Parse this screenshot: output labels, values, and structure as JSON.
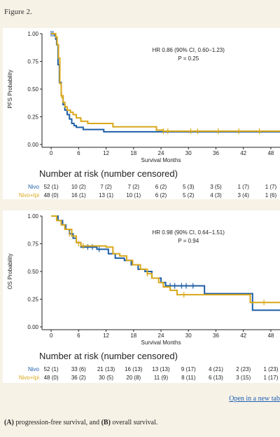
{
  "figure_label": "Figure 2.",
  "open_link_label": "Open in a new tab",
  "caption": {
    "a_marker": "(A)",
    "a_text": " progression-free survival, and ",
    "b_marker": "(B)",
    "b_text": " overall survival."
  },
  "colors": {
    "nivo": "#1f5fa6",
    "nivo_ipi": "#d9a81a",
    "axis": "#222222",
    "panel_bg": "#ffffff",
    "page_bg": "#f7f2e6"
  },
  "chart_data": [
    {
      "id": "pfs",
      "type": "line",
      "subtype": "kaplan-meier",
      "ylabel": "PFS Probability",
      "xlabel": "Survival Months",
      "xlim": [
        -2,
        50
      ],
      "ylim": [
        0,
        1
      ],
      "xticks": [
        0,
        6,
        12,
        18,
        24,
        30,
        36,
        42,
        48
      ],
      "yticks": [
        "0.00",
        "0.25",
        "0.50",
        "0.75",
        "1.00"
      ],
      "annotation": [
        "HR 0.86 (90% CI, 0.60−1.23)",
        "P = 0.25"
      ],
      "series": [
        {
          "name": "Nivo",
          "color": "#1f5fa6",
          "steps": [
            [
              0,
              1.0
            ],
            [
              0.8,
              0.98
            ],
            [
              1.0,
              0.95
            ],
            [
              1.2,
              0.9
            ],
            [
              1.5,
              0.72
            ],
            [
              1.8,
              0.56
            ],
            [
              2.2,
              0.44
            ],
            [
              2.6,
              0.36
            ],
            [
              3.0,
              0.31
            ],
            [
              3.5,
              0.27
            ],
            [
              4.0,
              0.23
            ],
            [
              4.5,
              0.19
            ],
            [
              5.0,
              0.17
            ],
            [
              5.5,
              0.155
            ],
            [
              7.0,
              0.135
            ],
            [
              11.0,
              0.135
            ],
            [
              11.5,
              0.115
            ],
            [
              23.0,
              0.115
            ],
            [
              50.0,
              0.115
            ]
          ],
          "censored": [
            [
              0,
              1.0
            ],
            [
              0.4,
              1.0
            ]
          ]
        },
        {
          "name": "Nivo+Ipi",
          "color": "#d9a81a",
          "steps": [
            [
              0,
              1.0
            ],
            [
              1.0,
              0.97
            ],
            [
              1.3,
              0.9
            ],
            [
              1.6,
              0.78
            ],
            [
              1.9,
              0.55
            ],
            [
              2.2,
              0.44
            ],
            [
              2.6,
              0.38
            ],
            [
              3.0,
              0.34
            ],
            [
              3.5,
              0.31
            ],
            [
              4.2,
              0.29
            ],
            [
              4.8,
              0.27
            ],
            [
              5.5,
              0.24
            ],
            [
              6.5,
              0.21
            ],
            [
              8.0,
              0.19
            ],
            [
              13.0,
              0.19
            ],
            [
              13.5,
              0.16
            ],
            [
              22.5,
              0.16
            ],
            [
              23.0,
              0.13
            ],
            [
              24.5,
              0.12
            ],
            [
              50.0,
              0.12
            ]
          ],
          "censored": [
            [
              2.3,
              0.44
            ],
            [
              24.5,
              0.12
            ],
            [
              25.5,
              0.12
            ],
            [
              30.5,
              0.12
            ],
            [
              32.0,
              0.12
            ],
            [
              36.5,
              0.12
            ],
            [
              41.0,
              0.12
            ],
            [
              45.5,
              0.12
            ]
          ]
        }
      ],
      "risk_table": {
        "title": "Number at risk (number censored)",
        "rows": [
          {
            "label": "Nivo",
            "color": "#1f5fa6",
            "values": [
              "52 (1)",
              "10 (2)",
              "7 (2)",
              "7 (2)",
              "6 (2)",
              "5 (3)",
              "3 (5)",
              "1 (7)",
              "1 (7)"
            ]
          },
          {
            "label": "Nivo+Ipi",
            "color": "#d9a81a",
            "values": [
              "48 (0)",
              "16 (1)",
              "13 (1)",
              "10 (1)",
              "6 (2)",
              "5 (2)",
              "4 (3)",
              "3 (4)",
              "1 (6)"
            ]
          }
        ]
      }
    },
    {
      "id": "os",
      "type": "line",
      "subtype": "kaplan-meier",
      "ylabel": "OS Probability",
      "xlabel": "Survival Months",
      "xlim": [
        -2,
        50
      ],
      "ylim": [
        0,
        1
      ],
      "xticks": [
        0,
        6,
        12,
        18,
        24,
        30,
        36,
        42,
        48
      ],
      "yticks": [
        "0.00",
        "0.25",
        "0.50",
        "0.75",
        "1.00"
      ],
      "annotation": [
        "HR 0.98 (90% CI, 0.64−1.51)",
        "P = 0.94"
      ],
      "series": [
        {
          "name": "Nivo",
          "color": "#1f5fa6",
          "steps": [
            [
              0,
              1.0
            ],
            [
              1.5,
              0.96
            ],
            [
              2.5,
              0.92
            ],
            [
              3.2,
              0.88
            ],
            [
              4.0,
              0.84
            ],
            [
              4.8,
              0.8
            ],
            [
              5.5,
              0.76
            ],
            [
              6.5,
              0.72
            ],
            [
              10.0,
              0.7
            ],
            [
              12.5,
              0.66
            ],
            [
              14.0,
              0.62
            ],
            [
              16.0,
              0.6
            ],
            [
              17.5,
              0.56
            ],
            [
              19.0,
              0.52
            ],
            [
              20.5,
              0.5
            ],
            [
              22.0,
              0.44
            ],
            [
              24.0,
              0.4
            ],
            [
              25.0,
              0.37
            ],
            [
              33.0,
              0.37
            ],
            [
              33.5,
              0.3
            ],
            [
              43.5,
              0.3
            ],
            [
              44.0,
              0.15
            ],
            [
              50.0,
              0.15
            ]
          ],
          "censored": [
            [
              8.0,
              0.72
            ],
            [
              9.0,
              0.72
            ],
            [
              10.5,
              0.7
            ],
            [
              26.0,
              0.37
            ],
            [
              27.0,
              0.37
            ],
            [
              28.5,
              0.37
            ],
            [
              29.5,
              0.37
            ],
            [
              31.0,
              0.37
            ]
          ]
        },
        {
          "name": "Nivo+Ipi",
          "color": "#d9a81a",
          "steps": [
            [
              0,
              1.0
            ],
            [
              1.2,
              0.96
            ],
            [
              2.2,
              0.92
            ],
            [
              3.0,
              0.88
            ],
            [
              4.5,
              0.82
            ],
            [
              5.5,
              0.76
            ],
            [
              6.5,
              0.73
            ],
            [
              12.0,
              0.72
            ],
            [
              13.5,
              0.66
            ],
            [
              15.0,
              0.64
            ],
            [
              16.5,
              0.6
            ],
            [
              17.8,
              0.56
            ],
            [
              19.5,
              0.52
            ],
            [
              21.0,
              0.48
            ],
            [
              22.0,
              0.44
            ],
            [
              23.5,
              0.4
            ],
            [
              24.5,
              0.36
            ],
            [
              26.0,
              0.33
            ],
            [
              27.5,
              0.29
            ],
            [
              42.5,
              0.29
            ],
            [
              43.5,
              0.22
            ],
            [
              50.0,
              0.22
            ]
          ],
          "censored": [
            [
              4.0,
              0.84
            ],
            [
              6.0,
              0.75
            ],
            [
              7.0,
              0.73
            ],
            [
              21.0,
              0.48
            ],
            [
              29.0,
              0.29
            ],
            [
              46.5,
              0.22
            ]
          ]
        }
      ],
      "risk_table": {
        "title": "Number at risk (number censored)",
        "rows": [
          {
            "label": "Nivo",
            "color": "#1f5fa6",
            "values": [
              "52 (1)",
              "33 (6)",
              "21 (13)",
              "16 (13)",
              "13 (13)",
              "9 (17)",
              "4 (21)",
              "2 (23)",
              "1 (23)"
            ]
          },
          {
            "label": "Nivo+Ipi",
            "color": "#d9a81a",
            "values": [
              "48 (0)",
              "36 (2)",
              "30 (5)",
              "20 (8)",
              "11 (9)",
              "8 (11)",
              "6 (13)",
              "3 (15)",
              "1 (17)"
            ]
          }
        ]
      }
    }
  ]
}
